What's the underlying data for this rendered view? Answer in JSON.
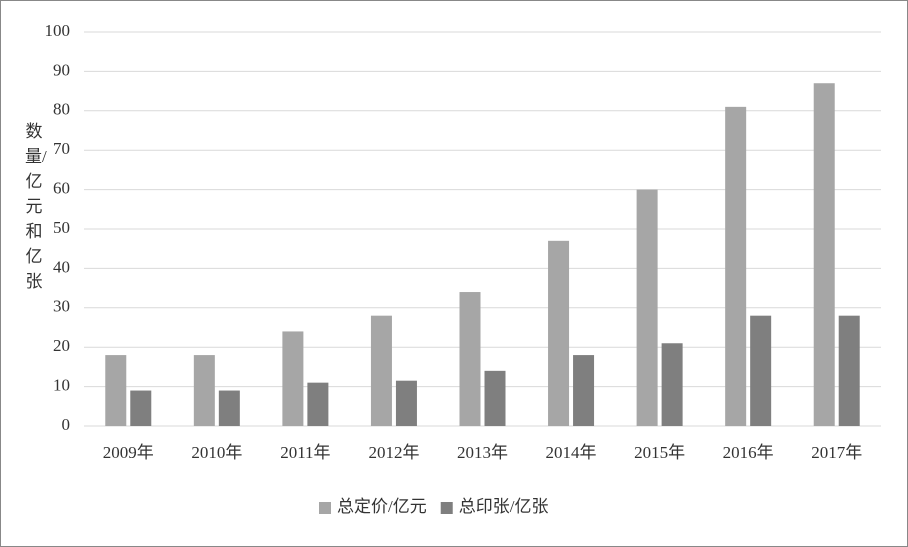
{
  "chart_data": {
    "type": "bar",
    "y_label": "数量/亿元和亿张",
    "categories": [
      "2009年",
      "2010年",
      "2011年",
      "2012年",
      "2013年",
      "2014年",
      "2015年",
      "2016年",
      "2017年"
    ],
    "series": [
      {
        "name": "总定价/亿元",
        "color": "#a6a6a6",
        "values": [
          18,
          18,
          24,
          28,
          34,
          47,
          60,
          81,
          87
        ]
      },
      {
        "name": "总印张/亿张",
        "color": "#7f7f7f",
        "values": [
          9,
          9,
          11,
          11.5,
          14,
          18,
          21,
          28,
          28
        ]
      }
    ],
    "ylim": [
      0,
      100
    ],
    "yticks": [
      0,
      10,
      20,
      30,
      40,
      50,
      60,
      70,
      80,
      90,
      100
    ],
    "grid": true,
    "legend": "bottom"
  }
}
